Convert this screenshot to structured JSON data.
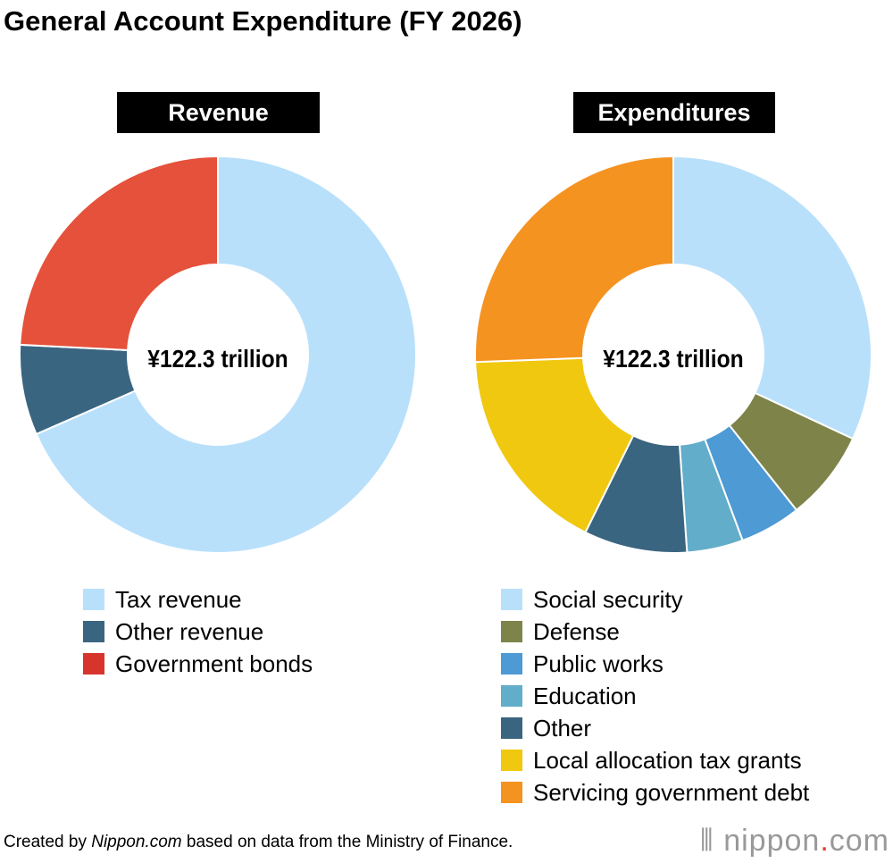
{
  "title": "General Account Expenditure (FY 2026)",
  "footer": {
    "prefix": "Created by ",
    "site": "Nippon.com",
    "suffix": " based on data from the Ministry of Finance."
  },
  "logo": {
    "text": "nippon",
    "dot": ".",
    "tld": "com"
  },
  "chart_data": [
    {
      "type": "pie",
      "title": "Revenue",
      "center_label": "¥122.3 trillion",
      "legend": "bottom",
      "categories": [
        "Tax revenue",
        "Other revenue",
        "Government bonds"
      ],
      "values": [
        83.7,
        9.0,
        29.6
      ],
      "legend_colors": [
        "#b9e0fb",
        "#3a6580",
        "#d8342e"
      ],
      "colors": [
        "#b9e0fb",
        "#3a6580",
        "#e5513a"
      ]
    },
    {
      "type": "pie",
      "title": "Expenditures",
      "center_label": "¥122.3 trillion",
      "legend": "bottom",
      "categories": [
        "Social security",
        "Defense",
        "Public works",
        "Education",
        "Other",
        "Local allocation tax grants",
        "Servicing government debt"
      ],
      "values": [
        39.1,
        9.0,
        6.1,
        5.6,
        10.3,
        20.9,
        31.3
      ],
      "legend_colors": [
        "#b9e0fb",
        "#7e8449",
        "#4d9ad4",
        "#62adc9",
        "#3a6580",
        "#f0c80f",
        "#f59320"
      ],
      "colors": [
        "#b9e0fb",
        "#7e8449",
        "#4d9ad4",
        "#62adc9",
        "#3a6580",
        "#f0c80f",
        "#f59320"
      ]
    }
  ]
}
